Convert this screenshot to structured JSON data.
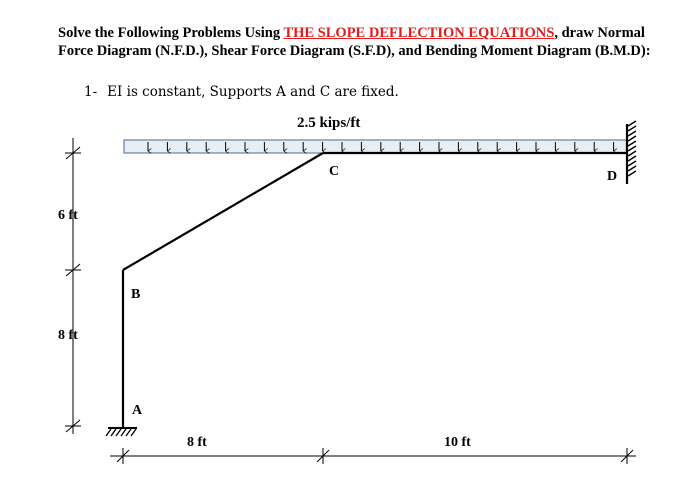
{
  "problem": {
    "heading_prefix": "Solve the Following Problems Using ",
    "heading_highlight": "THE SLOPE DEFLECTION EQUATIONS",
    "heading_suffix": ", draw Normal Force Diagram (N.F.D.), Shear Force Diagram (S.F.D), and  Bending Moment Diagram (B.M.D):",
    "item_number": "1-",
    "item_text": "EI is constant, Supports A and  C are fixed.",
    "highlight_color": "#e31b1b"
  },
  "diagram": {
    "load_label": "2.5 kips/ft",
    "joints": {
      "a": "A",
      "b": "B",
      "c": "C",
      "d": "D"
    },
    "dims": {
      "left_top": "6 ft",
      "left_bottom": "8 ft",
      "bottom_left": "8 ft",
      "bottom_right": "10 ft"
    },
    "load_fill_color": "#e6eef6",
    "load_border_color": "#4a6a8a"
  }
}
